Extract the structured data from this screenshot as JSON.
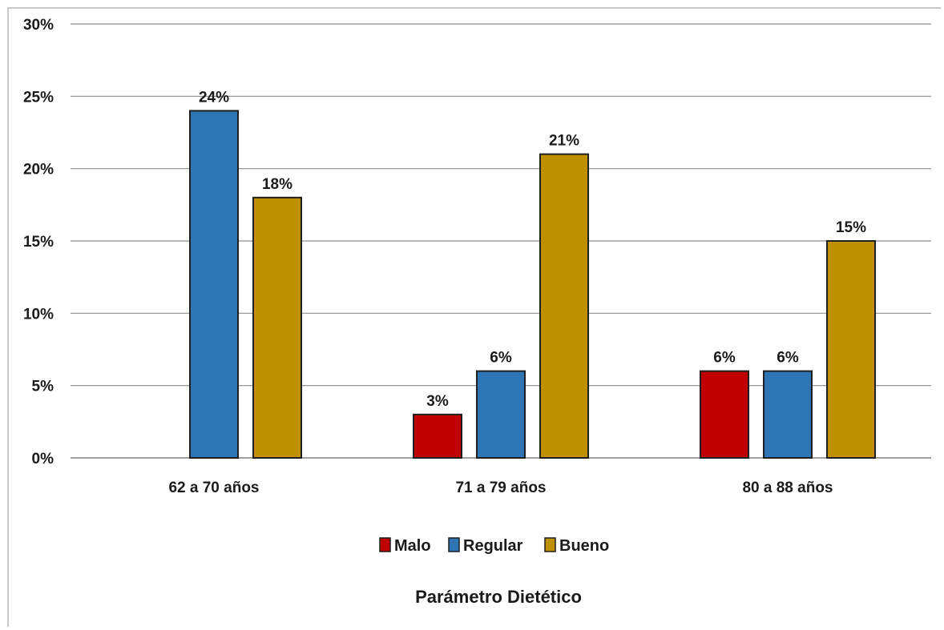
{
  "chart_data": {
    "type": "bar",
    "title": "",
    "xlabel": "Parámetro Dietético",
    "ylabel": "",
    "ylim": [
      0,
      30
    ],
    "yticks": [
      "0%",
      "5%",
      "10%",
      "15%",
      "20%",
      "25%",
      "30%"
    ],
    "ytick_values": [
      0,
      5,
      10,
      15,
      20,
      25,
      30
    ],
    "grid": true,
    "legend_position": "bottom",
    "categories": [
      "62 a 70 años",
      "71 a 79 años",
      "80 a 88 años"
    ],
    "series": [
      {
        "name": "Malo",
        "color": "#c00000",
        "values": [
          null,
          3,
          6
        ],
        "labels": [
          "",
          "3%",
          "6%"
        ]
      },
      {
        "name": "Regular",
        "color": "#2e75b6",
        "values": [
          24,
          6,
          6
        ],
        "labels": [
          "24%",
          "6%",
          "6%"
        ]
      },
      {
        "name": "Bueno",
        "color": "#bf9000",
        "values": [
          18,
          21,
          15
        ],
        "labels": [
          "18%",
          "21%",
          "15%"
        ]
      }
    ]
  }
}
